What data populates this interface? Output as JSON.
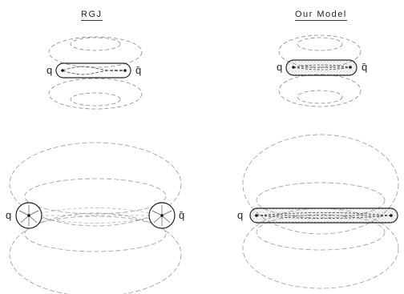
{
  "panels": {
    "left_title": "RGJ",
    "right_title": "Our Model"
  },
  "labels": {
    "quark": "q",
    "antiquark": "q̄"
  }
}
